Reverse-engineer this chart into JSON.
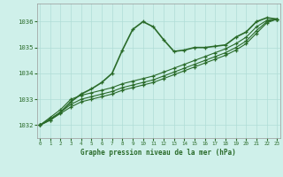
{
  "title": "Graphe pression niveau de la mer (hPa)",
  "background_color": "#cff0ea",
  "grid_color": "#b0ddd6",
  "line_color": "#2a6b2a",
  "x_ticks": [
    0,
    1,
    2,
    3,
    4,
    5,
    6,
    7,
    8,
    9,
    10,
    11,
    12,
    13,
    14,
    15,
    16,
    17,
    18,
    19,
    20,
    21,
    22,
    23
  ],
  "y_ticks": [
    1032,
    1033,
    1034,
    1035,
    1036
  ],
  "ylim": [
    1031.5,
    1036.7
  ],
  "xlim": [
    -0.3,
    23.3
  ],
  "series": [
    [
      1032.0,
      1032.2,
      1032.5,
      1032.9,
      1033.2,
      1033.4,
      1033.65,
      1034.0,
      1034.9,
      1035.7,
      1036.0,
      1035.8,
      1035.3,
      1034.85,
      1034.9,
      1035.0,
      1035.0,
      1035.05,
      1035.1,
      1035.4,
      1035.6,
      1036.0,
      1036.15,
      1036.1
    ],
    [
      1032.0,
      1032.3,
      1032.6,
      1033.0,
      1033.15,
      1033.25,
      1033.35,
      1033.45,
      1033.6,
      1033.7,
      1033.8,
      1033.9,
      1034.05,
      1034.2,
      1034.35,
      1034.5,
      1034.65,
      1034.8,
      1034.95,
      1035.15,
      1035.4,
      1035.8,
      1036.05,
      1036.1
    ],
    [
      1032.0,
      1032.25,
      1032.5,
      1032.8,
      1033.0,
      1033.1,
      1033.2,
      1033.3,
      1033.45,
      1033.55,
      1033.65,
      1033.75,
      1033.9,
      1034.05,
      1034.2,
      1034.35,
      1034.5,
      1034.65,
      1034.8,
      1035.0,
      1035.25,
      1035.65,
      1036.0,
      1036.1
    ],
    [
      1032.0,
      1032.2,
      1032.45,
      1032.7,
      1032.9,
      1033.0,
      1033.1,
      1033.2,
      1033.35,
      1033.45,
      1033.55,
      1033.65,
      1033.8,
      1033.95,
      1034.1,
      1034.25,
      1034.4,
      1034.55,
      1034.7,
      1034.9,
      1035.15,
      1035.55,
      1035.95,
      1036.1
    ]
  ]
}
